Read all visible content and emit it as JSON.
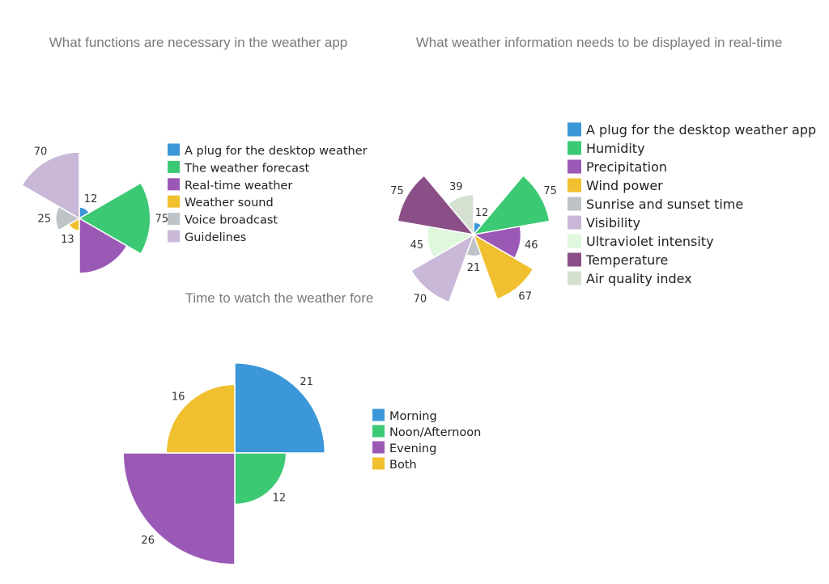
{
  "chart_data": [
    {
      "type": "rose",
      "title": "What functions are necessary in the weather app",
      "categories": [
        "A plug for the desktop weather",
        "The weather forecast",
        "Real-time weather",
        "Weather sound",
        "Voice broadcast",
        "Guidelines"
      ],
      "values": [
        12,
        75,
        58,
        13,
        25,
        70
      ],
      "value_labels": [
        "12",
        "75",
        "",
        "13",
        "25",
        "70"
      ],
      "colors": [
        "#3b97d7",
        "#3cc974",
        "#9b59b6",
        "#f0c030",
        "#bdc3c7",
        "#c9b8d8"
      ],
      "legend_position": "right"
    },
    {
      "type": "rose",
      "title": "What weather information needs to be displayed in real-time",
      "categories": [
        "A plug for the desktop weather app",
        "Humidity",
        "Precipitation",
        "Wind power",
        "Sunrise and sunset time",
        "Visibility",
        "Ultraviolet intensity",
        "Temperature",
        "Air quality index"
      ],
      "values": [
        12,
        75,
        46,
        67,
        21,
        70,
        45,
        75,
        39
      ],
      "colors": [
        "#3b97d7",
        "#3cc974",
        "#9b59b6",
        "#f0c030",
        "#bdc3c7",
        "#c9b8d8",
        "#dff7dc",
        "#8a4f86",
        "#d5e0d0"
      ],
      "legend_position": "right"
    },
    {
      "type": "rose",
      "title": "Time to watch the weather fore",
      "categories": [
        "Morning",
        "Noon/Afternoon",
        "Evening",
        "Both"
      ],
      "values": [
        21,
        12,
        26,
        16
      ],
      "colors": [
        "#3b97d7",
        "#3cc974",
        "#9b59b6",
        "#f0c030"
      ],
      "legend_position": "right"
    }
  ]
}
